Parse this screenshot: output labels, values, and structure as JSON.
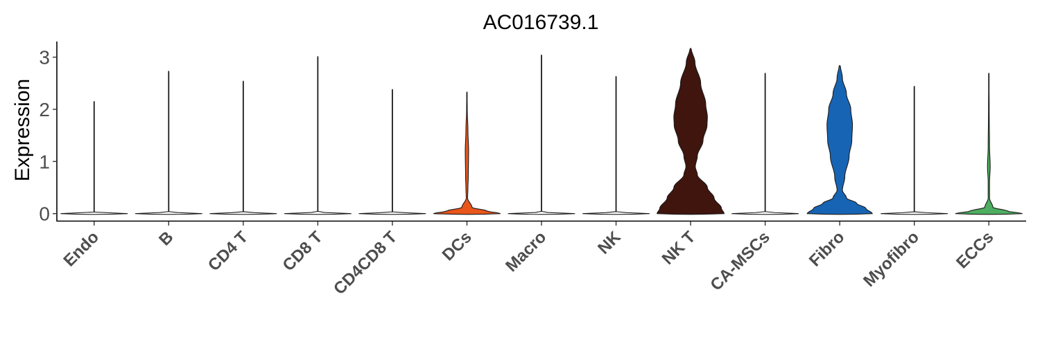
{
  "chart_data": {
    "type": "violin",
    "title": "AC016739.1",
    "xlabel": "",
    "ylabel": "Expression",
    "ylim": [
      -0.15,
      3.3
    ],
    "yticks": [
      0,
      1,
      2,
      3
    ],
    "grid": false,
    "legend": "none",
    "categories": [
      "Endo",
      "B",
      "CD4 T",
      "CD8 T",
      "CD4CD8 T",
      "DCs",
      "Macro",
      "NK",
      "NK T",
      "CA-MSCs",
      "Fibro",
      "Myofibro",
      "ECCs"
    ],
    "series": [
      {
        "category": "Endo",
        "max": 2.15,
        "color": "#ffffff",
        "profile": [
          [
            0,
            1.0
          ],
          [
            0.03,
            0.0
          ]
        ]
      },
      {
        "category": "B",
        "max": 2.73,
        "color": "#ffffff",
        "profile": [
          [
            0,
            1.0
          ],
          [
            0.03,
            0.0
          ]
        ]
      },
      {
        "category": "CD4 T",
        "max": 2.54,
        "color": "#ffffff",
        "profile": [
          [
            0,
            1.0
          ],
          [
            0.03,
            0.0
          ]
        ]
      },
      {
        "category": "CD8 T",
        "max": 3.01,
        "color": "#ffffff",
        "profile": [
          [
            0,
            1.0
          ],
          [
            0.03,
            0.0
          ]
        ]
      },
      {
        "category": "CD4CD8 T",
        "max": 2.38,
        "color": "#ffffff",
        "profile": [
          [
            0,
            1.0
          ],
          [
            0.03,
            0.0
          ]
        ]
      },
      {
        "category": "DCs",
        "max": 2.33,
        "color": "#e8561c",
        "profile": [
          [
            0,
            1.0
          ],
          [
            0.05,
            0.6
          ],
          [
            0.12,
            0.15
          ],
          [
            0.3,
            0.02
          ],
          [
            0.5,
            0.03
          ],
          [
            0.7,
            0.04
          ],
          [
            1.2,
            0.05
          ],
          [
            1.6,
            0.03
          ],
          [
            2.0,
            0.01
          ]
        ]
      },
      {
        "category": "Macro",
        "max": 3.04,
        "color": "#ffffff",
        "profile": [
          [
            0,
            1.0
          ],
          [
            0.03,
            0.0
          ]
        ]
      },
      {
        "category": "NK",
        "max": 2.63,
        "color": "#ffffff",
        "profile": [
          [
            0,
            1.0
          ],
          [
            0.03,
            0.0
          ]
        ]
      },
      {
        "category": "NK T",
        "max": 3.17,
        "color": "#40150e",
        "profile": [
          [
            0,
            1.0
          ],
          [
            0.1,
            0.92
          ],
          [
            0.3,
            0.7
          ],
          [
            0.5,
            0.5
          ],
          [
            0.75,
            0.2
          ],
          [
            0.9,
            0.14
          ],
          [
            1.1,
            0.2
          ],
          [
            1.4,
            0.37
          ],
          [
            1.7,
            0.49
          ],
          [
            1.85,
            0.5
          ],
          [
            2.1,
            0.45
          ],
          [
            2.5,
            0.3
          ],
          [
            2.9,
            0.13
          ],
          [
            3.17,
            0.02
          ]
        ]
      },
      {
        "category": "CA-MSCs",
        "max": 2.69,
        "color": "#ffffff",
        "profile": [
          [
            0,
            1.0
          ],
          [
            0.03,
            0.0
          ]
        ]
      },
      {
        "category": "Fibro",
        "max": 2.84,
        "color": "#1864b4",
        "profile": [
          [
            0,
            0.97
          ],
          [
            0.1,
            0.78
          ],
          [
            0.2,
            0.5
          ],
          [
            0.3,
            0.2
          ],
          [
            0.45,
            0.08
          ],
          [
            0.7,
            0.15
          ],
          [
            1.1,
            0.28
          ],
          [
            1.4,
            0.36
          ],
          [
            1.7,
            0.38
          ],
          [
            2.0,
            0.33
          ],
          [
            2.3,
            0.2
          ],
          [
            2.6,
            0.08
          ],
          [
            2.84,
            0.02
          ]
        ]
      },
      {
        "category": "Myofibro",
        "max": 2.44,
        "color": "#ffffff",
        "profile": [
          [
            0,
            1.0
          ],
          [
            0.03,
            0.0
          ]
        ]
      },
      {
        "category": "ECCs",
        "max": 2.69,
        "color": "#4ead60",
        "profile": [
          [
            0,
            1.0
          ],
          [
            0.05,
            0.55
          ],
          [
            0.12,
            0.12
          ],
          [
            0.3,
            0.02
          ],
          [
            0.6,
            0.02
          ],
          [
            0.9,
            0.04
          ],
          [
            1.3,
            0.02
          ],
          [
            2.0,
            0.01
          ]
        ]
      }
    ]
  }
}
